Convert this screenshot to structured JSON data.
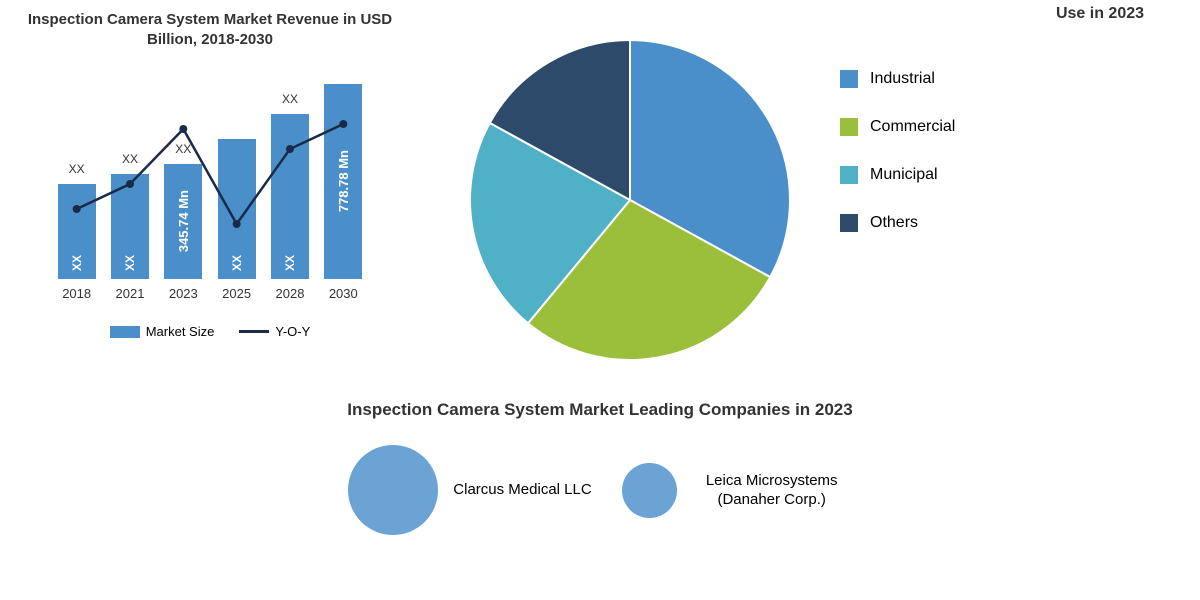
{
  "barChart": {
    "title": "Inspection Camera System Market Revenue in USD Billion, 2018-2030",
    "type": "bar",
    "categories": [
      "2018",
      "2021",
      "2023",
      "2025",
      "2028",
      "2030"
    ],
    "heights": [
      95,
      105,
      115,
      140,
      165,
      195
    ],
    "topLabels": [
      "XX",
      "XX",
      "XX",
      "",
      "XX",
      ""
    ],
    "insideLabels": [
      "",
      "",
      "345.74 Mn",
      "",
      "",
      "778.78 Mn"
    ],
    "bottomLabels": [
      "XX",
      "XX",
      "",
      "XX",
      "XX",
      ""
    ],
    "bar_color": "#4a8fc9",
    "line_points_y": [
      70,
      95,
      150,
      55,
      130,
      155
    ],
    "line_color": "#1a2b4a",
    "legend": {
      "bar": "Market Size",
      "line": "Y-O-Y"
    }
  },
  "pieChart": {
    "title": "Use in 2023",
    "type": "pie",
    "slices": [
      {
        "label": "Industrial",
        "value": 33,
        "color": "#4a8fc9"
      },
      {
        "label": "Commercial",
        "value": 28,
        "color": "#9bbf3b"
      },
      {
        "label": "Municipal",
        "value": 22,
        "color": "#4fb0c6"
      },
      {
        "label": "Others",
        "value": 17,
        "color": "#2e4a6b"
      }
    ],
    "background_color": "#ffffff"
  },
  "companies": {
    "title": "Inspection Camera System Market Leading Companies in 2023",
    "items": [
      {
        "label": "Clarcus Medical LLC",
        "bubble_size": 90,
        "color": "#6aa3d4"
      },
      {
        "label": "Leica Microsystems (Danaher Corp.)",
        "bubble_size": 55,
        "color": "#6aa3d4"
      }
    ]
  }
}
